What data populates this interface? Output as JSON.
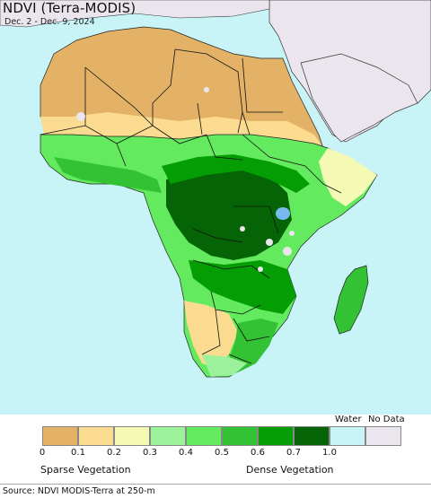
{
  "map": {
    "title": "NDVI (Terra-MODIS)",
    "date_range": "Dec. 2 - Dec. 9, 2024"
  },
  "legend": {
    "classes": [
      {
        "tick": "0",
        "color": "#e3b266"
      },
      {
        "tick": "0.1",
        "color": "#fbdb90"
      },
      {
        "tick": "0.2",
        "color": "#f4f9b3"
      },
      {
        "tick": "0.3",
        "color": "#9cf29a"
      },
      {
        "tick": "0.4",
        "color": "#63ea5f"
      },
      {
        "tick": "0.5",
        "color": "#33c233"
      },
      {
        "tick": "0.6",
        "color": "#049d04"
      },
      {
        "tick": "0.7",
        "color": "#056405"
      },
      {
        "tick": "1.0",
        "color": null
      }
    ],
    "water_label": "Water",
    "water_color": "#c8f4f8",
    "nodata_label": "No Data",
    "nodata_color": "#ebe6ed",
    "sparse_label": "Sparse Vegetation",
    "dense_label": "Dense Vegetation"
  },
  "source": "Source: NDVI MODIS-Terra at 250-m"
}
